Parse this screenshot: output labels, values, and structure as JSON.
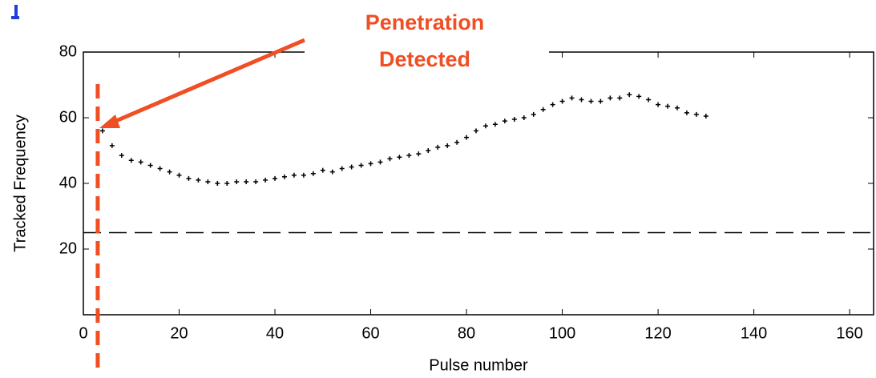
{
  "chart_data": {
    "type": "scatter",
    "annotation": [
      "Penetration",
      "Detected"
    ],
    "xlabel": "Pulse number",
    "ylabel": "Tracked Frequency",
    "x": [
      4,
      6,
      8,
      10,
      12,
      14,
      16,
      18,
      20,
      22,
      24,
      26,
      28,
      30,
      32,
      34,
      36,
      38,
      40,
      42,
      44,
      46,
      48,
      50,
      52,
      54,
      56,
      58,
      60,
      62,
      64,
      66,
      68,
      70,
      72,
      74,
      76,
      78,
      80,
      82,
      84,
      86,
      88,
      90,
      92,
      94,
      96,
      98,
      100,
      102,
      104,
      106,
      108,
      110,
      112,
      114,
      116,
      118,
      120,
      122,
      124,
      126,
      128,
      130
    ],
    "values": [
      56,
      51.5,
      48.5,
      47,
      46.5,
      45.5,
      44.5,
      43.5,
      42.5,
      41.5,
      41,
      40.5,
      40,
      40,
      40.5,
      40.5,
      40.5,
      41,
      41.5,
      42,
      42.5,
      42.5,
      43,
      44,
      43.5,
      44.5,
      45,
      45.5,
      46,
      46.5,
      47.5,
      48,
      48.5,
      49,
      50,
      51,
      51.5,
      52.5,
      54,
      56,
      57.5,
      58,
      59,
      59.5,
      60,
      61,
      62.5,
      64,
      65,
      66,
      65.5,
      65,
      65,
      66,
      66,
      67,
      66.5,
      65.5,
      64,
      63.5,
      63,
      61.5,
      61,
      60.5
    ],
    "color": "#000000",
    "threshold_y": 25,
    "detection_x": 3,
    "detection_color": "#f04e23",
    "xlim": [
      0,
      165
    ],
    "ylim": [
      0,
      80
    ],
    "xticks": [
      0,
      20,
      40,
      60,
      80,
      100,
      120,
      140,
      160
    ],
    "yticks": [
      20,
      40,
      60,
      80
    ]
  }
}
